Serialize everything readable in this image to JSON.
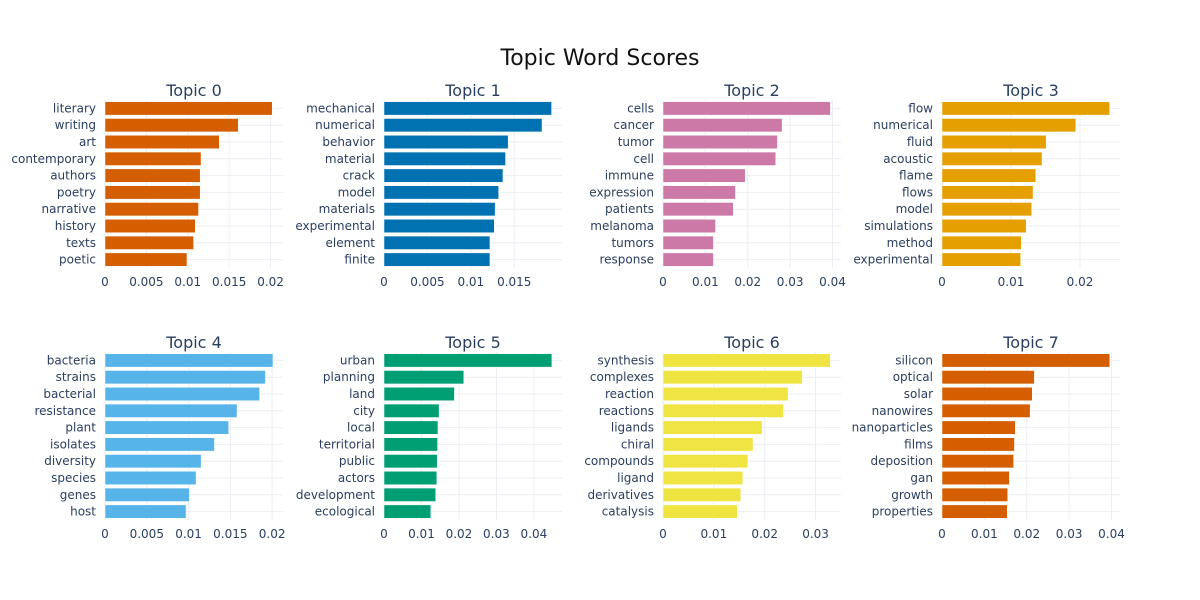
{
  "title": "Topic Word Scores",
  "chart_data": [
    {
      "type": "bar",
      "orientation": "horizontal",
      "title": "Topic 0",
      "color": "#D55E00",
      "categories": [
        "literary",
        "writing",
        "art",
        "contemporary",
        "authors",
        "poetry",
        "narrative",
        "history",
        "texts",
        "poetic"
      ],
      "values": [
        0.0202,
        0.0161,
        0.0138,
        0.0116,
        0.0115,
        0.0115,
        0.0113,
        0.0109,
        0.0107,
        0.0099
      ],
      "xlim": [
        0,
        0.0215
      ],
      "xticks": [
        0,
        0.005,
        0.01,
        0.015,
        0.02
      ],
      "xtick_labels": [
        "0",
        "0.005",
        "0.01",
        "0.015",
        "0.02"
      ]
    },
    {
      "type": "bar",
      "orientation": "horizontal",
      "title": "Topic 1",
      "color": "#0072B2",
      "categories": [
        "mechanical",
        "numerical",
        "behavior",
        "material",
        "crack",
        "model",
        "materials",
        "experimental",
        "element",
        "finite"
      ],
      "values": [
        0.0193,
        0.0182,
        0.0143,
        0.014,
        0.0137,
        0.0132,
        0.0128,
        0.0127,
        0.0122,
        0.0122
      ],
      "xlim": [
        0,
        0.0205
      ],
      "xticks": [
        0,
        0.005,
        0.01,
        0.015
      ],
      "xtick_labels": [
        "0",
        "0.005",
        "0.01",
        "0.015"
      ]
    },
    {
      "type": "bar",
      "orientation": "horizontal",
      "title": "Topic 2",
      "color": "#CC79A7",
      "categories": [
        "cells",
        "cancer",
        "tumor",
        "cell",
        "immune",
        "expression",
        "patients",
        "melanoma",
        "tumors",
        "response"
      ],
      "values": [
        0.0395,
        0.0281,
        0.027,
        0.0266,
        0.0194,
        0.0171,
        0.0166,
        0.0124,
        0.0119,
        0.0119
      ],
      "xlim": [
        0,
        0.042
      ],
      "xticks": [
        0,
        0.01,
        0.02,
        0.03,
        0.04
      ],
      "xtick_labels": [
        "0",
        "0.01",
        "0.02",
        "0.03",
        "0.04"
      ]
    },
    {
      "type": "bar",
      "orientation": "horizontal",
      "title": "Topic 3",
      "color": "#E69F00",
      "categories": [
        "flow",
        "numerical",
        "fluid",
        "acoustic",
        "flame",
        "flows",
        "model",
        "simulations",
        "method",
        "experimental"
      ],
      "values": [
        0.0243,
        0.0194,
        0.0151,
        0.0145,
        0.0136,
        0.0132,
        0.013,
        0.0122,
        0.0115,
        0.0114
      ],
      "xlim": [
        0,
        0.0258
      ],
      "xticks": [
        0,
        0.01,
        0.02
      ],
      "xtick_labels": [
        "0",
        "0.01",
        "0.02"
      ]
    },
    {
      "type": "bar",
      "orientation": "horizontal",
      "title": "Topic 4",
      "color": "#56B4E9",
      "categories": [
        "bacteria",
        "strains",
        "bacterial",
        "resistance",
        "plant",
        "isolates",
        "diversity",
        "species",
        "genes",
        "host"
      ],
      "values": [
        0.0201,
        0.0192,
        0.0185,
        0.0158,
        0.0148,
        0.0131,
        0.0115,
        0.0109,
        0.0101,
        0.0097
      ],
      "xlim": [
        0,
        0.0213
      ],
      "xticks": [
        0,
        0.005,
        0.01,
        0.015,
        0.02
      ],
      "xtick_labels": [
        "0",
        "0.005",
        "0.01",
        "0.015",
        "0.02"
      ]
    },
    {
      "type": "bar",
      "orientation": "horizontal",
      "title": "Topic 5",
      "color": "#009E73",
      "categories": [
        "urban",
        "planning",
        "land",
        "city",
        "local",
        "territorial",
        "public",
        "actors",
        "development",
        "ecological"
      ],
      "values": [
        0.0448,
        0.0213,
        0.0188,
        0.0147,
        0.0144,
        0.0143,
        0.0142,
        0.0141,
        0.0138,
        0.0125
      ],
      "xlim": [
        0,
        0.0475
      ],
      "xticks": [
        0,
        0.01,
        0.02,
        0.03,
        0.04
      ],
      "xtick_labels": [
        "0",
        "0.01",
        "0.02",
        "0.03",
        "0.04"
      ]
    },
    {
      "type": "bar",
      "orientation": "horizontal",
      "title": "Topic 6",
      "color": "#F0E442",
      "categories": [
        "synthesis",
        "complexes",
        "reaction",
        "reactions",
        "ligands",
        "chiral",
        "compounds",
        "ligand",
        "derivatives",
        "catalysis"
      ],
      "values": [
        0.0329,
        0.0274,
        0.0246,
        0.0237,
        0.0195,
        0.0177,
        0.0167,
        0.0157,
        0.0153,
        0.0146
      ],
      "xlim": [
        0,
        0.035
      ],
      "xticks": [
        0,
        0.01,
        0.02,
        0.03
      ],
      "xtick_labels": [
        "0",
        "0.01",
        "0.02",
        "0.03"
      ]
    },
    {
      "type": "bar",
      "orientation": "horizontal",
      "title": "Topic 7",
      "color": "#D55E00",
      "categories": [
        "silicon",
        "optical",
        "solar",
        "nanowires",
        "nanoparticles",
        "films",
        "deposition",
        "gan",
        "growth",
        "properties"
      ],
      "values": [
        0.0396,
        0.0218,
        0.0213,
        0.0208,
        0.0173,
        0.0171,
        0.0169,
        0.0159,
        0.0155,
        0.0154
      ],
      "xlim": [
        0,
        0.042
      ],
      "xticks": [
        0,
        0.01,
        0.02,
        0.03,
        0.04
      ],
      "xtick_labels": [
        "0",
        "0.01",
        "0.02",
        "0.03",
        "0.04"
      ]
    }
  ]
}
